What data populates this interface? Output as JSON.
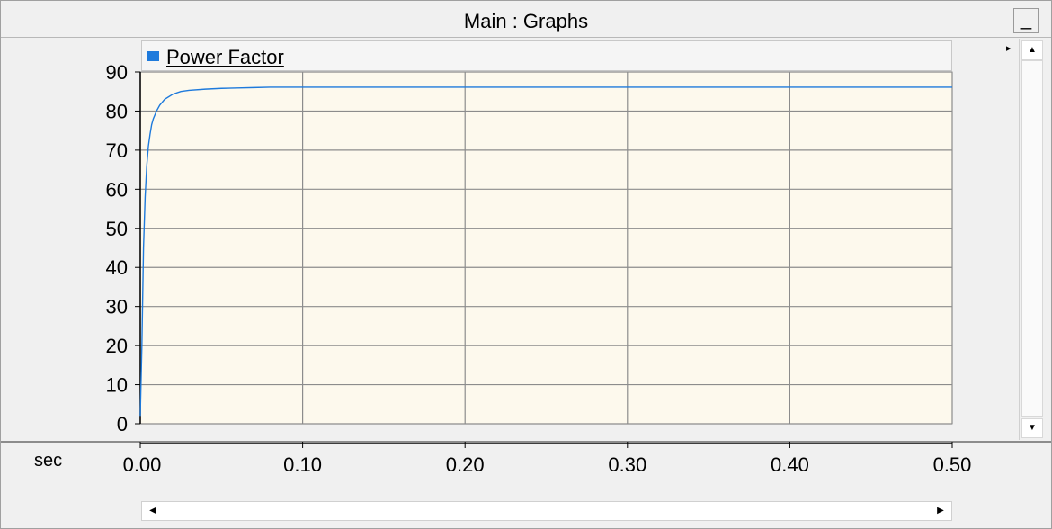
{
  "window": {
    "title": "Main : Graphs",
    "minimize_glyph": "_",
    "expand_glyph": "▸",
    "scroll_up_glyph": "▲",
    "scroll_down_glyph": "▼",
    "scroll_left_glyph": "◀",
    "scroll_right_glyph": "▶"
  },
  "colors": {
    "plot_background": "#fdf9ed",
    "grid": "#8c8c8c",
    "series": "#1e7adc"
  },
  "chart_data": {
    "type": "line",
    "legend": [
      {
        "name": "Power Factor",
        "color": "#1e7adc"
      }
    ],
    "legend_placement": "top-left",
    "x_unit": "sec",
    "x_ticks": [
      "0.00",
      "0.10",
      "0.20",
      "0.30",
      "0.40",
      "0.50"
    ],
    "y_ticks": [
      "0",
      "10",
      "20",
      "30",
      "40",
      "50",
      "60",
      "70",
      "80",
      "90"
    ],
    "xlim": [
      0,
      0.5
    ],
    "ylim": [
      0,
      90
    ],
    "grid": true,
    "series": [
      {
        "name": "Power Factor",
        "x": [
          0.0,
          0.001,
          0.002,
          0.003,
          0.004,
          0.005,
          0.006,
          0.007,
          0.008,
          0.01,
          0.012,
          0.015,
          0.02,
          0.025,
          0.03,
          0.04,
          0.05,
          0.06,
          0.07,
          0.08,
          0.1,
          0.2,
          0.3,
          0.4,
          0.5
        ],
        "y": [
          2,
          20,
          45,
          58,
          66,
          71,
          74,
          76.5,
          78,
          80,
          81.5,
          83,
          84.3,
          85,
          85.3,
          85.6,
          85.8,
          85.9,
          86,
          86.1,
          86.1,
          86.1,
          86.1,
          86.1,
          86.1
        ]
      }
    ]
  }
}
